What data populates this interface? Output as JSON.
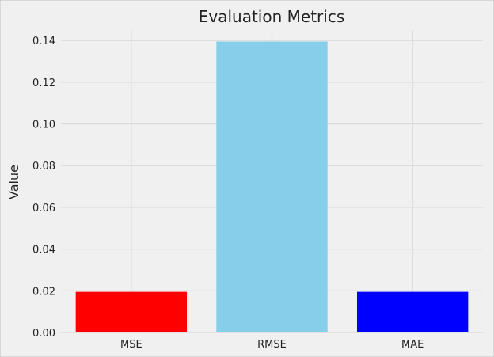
{
  "chart_data": {
    "type": "bar",
    "title": "Evaluation Metrics",
    "xlabel": "",
    "ylabel": "Value",
    "categories": [
      "MSE",
      "RMSE",
      "MAE"
    ],
    "values": [
      0.0195,
      0.1395,
      0.0195
    ],
    "bar_colors": [
      "#ff0000",
      "#87ceeb",
      "#0000ff"
    ],
    "ylim": [
      0,
      0.145
    ],
    "yticks": [
      0.0,
      0.02,
      0.04,
      0.06,
      0.08,
      0.1,
      0.12,
      0.14
    ],
    "ytick_labels": [
      "0.00",
      "0.02",
      "0.04",
      "0.06",
      "0.08",
      "0.10",
      "0.12",
      "0.14"
    ],
    "grid": true,
    "background_color": "#f0f0f0",
    "grid_color": "#d9d9d9"
  }
}
